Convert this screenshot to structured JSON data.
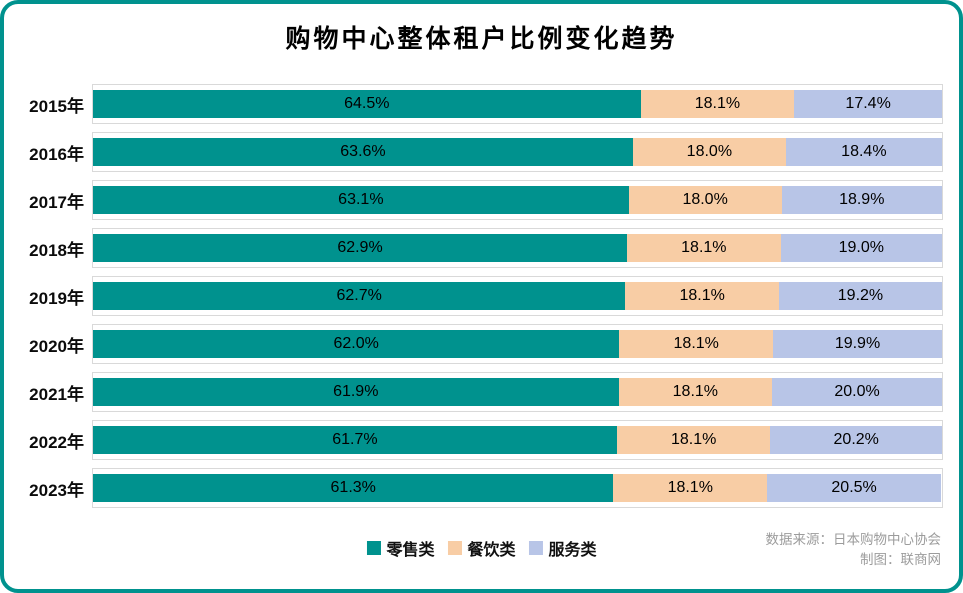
{
  "chart_data": {
    "type": "bar",
    "orientation": "horizontal-stacked",
    "title": "购物中心整体租户比例变化趋势",
    "categories": [
      "2015年",
      "2016年",
      "2017年",
      "2018年",
      "2019年",
      "2020年",
      "2021年",
      "2022年",
      "2023年"
    ],
    "series": [
      {
        "name": "零售类",
        "color": "#00928e",
        "values": [
          64.5,
          63.6,
          63.1,
          62.9,
          62.7,
          62.0,
          61.9,
          61.7,
          61.3
        ]
      },
      {
        "name": "餐饮类",
        "color": "#f8cda5",
        "values": [
          18.1,
          18.0,
          18.0,
          18.1,
          18.1,
          18.1,
          18.1,
          18.1,
          18.1
        ]
      },
      {
        "name": "服务类",
        "color": "#b8c5e7",
        "values": [
          17.4,
          18.4,
          18.9,
          19.0,
          19.2,
          19.9,
          20.0,
          20.2,
          20.5
        ]
      }
    ],
    "value_suffix": "%",
    "xlim": [
      0,
      100
    ],
    "grid": false,
    "legend_position": "bottom",
    "track_border_color": "#d9d9d9",
    "frame_color": "#00928e"
  },
  "footer": {
    "source": "数据来源：日本购物中心协会",
    "credit": "制图：联商网"
  }
}
